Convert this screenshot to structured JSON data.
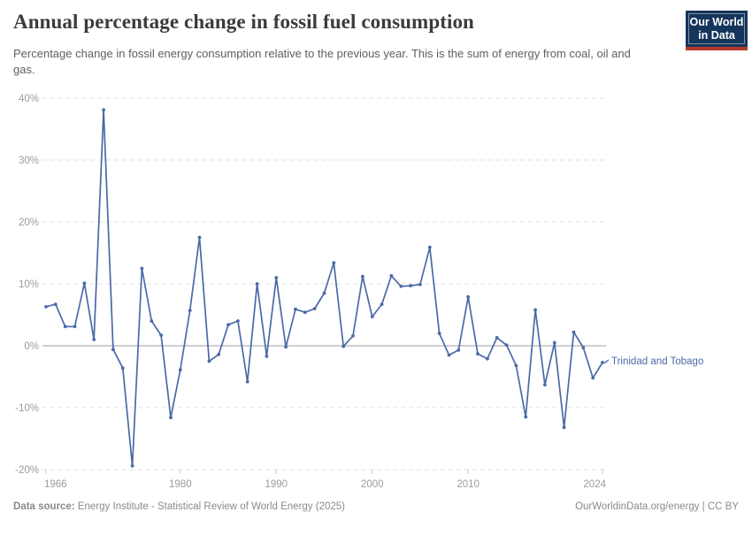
{
  "header": {
    "title": "Annual percentage change in fossil fuel consumption",
    "subtitle": "Percentage change in fossil energy consumption relative to the previous year. This is the sum of energy from coal, oil and gas.",
    "logo": {
      "line1": "Our World",
      "line2": "in Data"
    }
  },
  "chart_data": {
    "type": "line",
    "title": "Annual percentage change in fossil fuel consumption",
    "series": [
      {
        "name": "Trinidad and Tobago",
        "x": [
          1966,
          1967,
          1968,
          1969,
          1970,
          1971,
          1972,
          1973,
          1974,
          1975,
          1976,
          1977,
          1978,
          1979,
          1980,
          1981,
          1982,
          1983,
          1984,
          1985,
          1986,
          1987,
          1988,
          1989,
          1990,
          1991,
          1992,
          1993,
          1994,
          1995,
          1996,
          1997,
          1998,
          1999,
          2000,
          2001,
          2002,
          2003,
          2004,
          2005,
          2006,
          2007,
          2008,
          2009,
          2010,
          2011,
          2012,
          2013,
          2014,
          2015,
          2016,
          2017,
          2018,
          2019,
          2020,
          2021,
          2022,
          2023,
          2024
        ],
        "values": [
          6.3,
          6.7,
          3.1,
          3.1,
          10.1,
          1.0,
          38.1,
          -0.6,
          -3.6,
          -19.4,
          12.5,
          4.0,
          1.7,
          -11.6,
          -3.9,
          5.7,
          17.5,
          -2.5,
          -1.4,
          3.4,
          4.0,
          -5.8,
          10.0,
          -1.7,
          11.0,
          -0.2,
          5.9,
          5.4,
          6.0,
          8.5,
          13.4,
          -0.1,
          1.6,
          11.2,
          4.7,
          6.7,
          11.3,
          9.6,
          9.7,
          9.9,
          15.9,
          2.0,
          -1.5,
          -0.7,
          7.9,
          -1.3,
          -2.1,
          1.3,
          0.1,
          -3.2,
          -11.5,
          5.8,
          -6.3,
          0.5,
          -13.2,
          2.2,
          -0.3,
          -5.2,
          -2.7
        ]
      }
    ],
    "xlabel": "",
    "ylabel": "",
    "ylim": [
      -20,
      40
    ],
    "xlim": [
      1966,
      2024
    ],
    "yticks": [
      40,
      30,
      20,
      10,
      0,
      -10,
      -20
    ],
    "ytick_suffix": "%",
    "xticks": [
      1966,
      1980,
      1990,
      2000,
      2010,
      2024
    ],
    "grid": "horizontal-dashed, zero line solid",
    "legend_position": "end-of-line label",
    "end_label": "Trinidad and Tobago",
    "line_color": "#4b69a8"
  },
  "footer": {
    "source_label": "Data source:",
    "source_text": " Energy Institute - Statistical Review of World Energy (2025)",
    "credit": "OurWorldinData.org/energy | CC BY"
  },
  "colors": {
    "line": "#4b69a8",
    "grid": "#e2e2e2",
    "zero_line": "#9c9c9c",
    "axis_text": "#9b9b9b",
    "title_text": "#3b3b3b",
    "subtitle_text": "#5e5e5e",
    "footer_text": "#8a8a8a",
    "logo_navy": "#16355c",
    "logo_red": "#b5392c"
  }
}
